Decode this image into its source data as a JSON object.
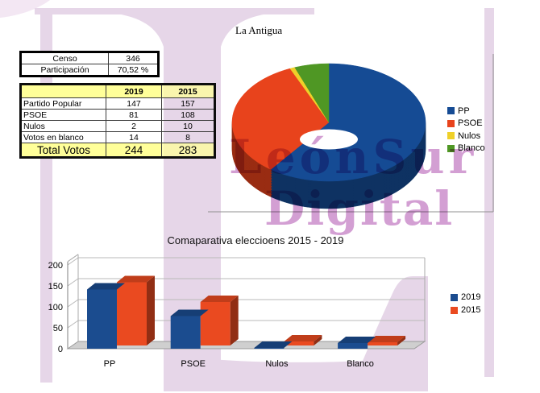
{
  "title": "La Antigua",
  "watermark": {
    "line1": "LeónSur",
    "line2": "Digital"
  },
  "summary_table": {
    "rows": [
      {
        "label": "Censo",
        "value": "346"
      },
      {
        "label": "Participación",
        "value": "70,52 %"
      }
    ]
  },
  "results_table": {
    "col_headers": [
      "",
      "2019",
      "2015"
    ],
    "rows": [
      {
        "label": "Partido Popular",
        "v2019": "147",
        "v2015": "157"
      },
      {
        "label": "PSOE",
        "v2019": "81",
        "v2015": "108"
      },
      {
        "label": "Nulos",
        "v2019": "2",
        "v2015": "10"
      },
      {
        "label": "Votos en blanco",
        "v2019": "14",
        "v2015": "8"
      }
    ],
    "total": {
      "label": "Total Votos",
      "v2019": "244",
      "v2015": "283"
    }
  },
  "chart_data": [
    {
      "type": "pie",
      "shape": "3d-donut",
      "labels": [
        "PP",
        "PSOE",
        "Nulos",
        "Blanco"
      ],
      "values": [
        147,
        81,
        2,
        14
      ],
      "colors": [
        "#154b94",
        "#e8431c",
        "#efd029",
        "#4f9724"
      ],
      "legend_position": "right"
    },
    {
      "type": "bar",
      "shape": "3d-bar",
      "title": "Comaparativa eleccioens 2015 - 2019",
      "categories": [
        "PP",
        "PSOE",
        "Nulos",
        "Blanco"
      ],
      "series": [
        {
          "name": "2019",
          "values": [
            147,
            81,
            2,
            14
          ],
          "color": "#1b4c8f"
        },
        {
          "name": "2015",
          "values": [
            157,
            108,
            10,
            8
          ],
          "color": "#ea4a20"
        }
      ],
      "ylim": [
        0,
        200
      ],
      "yticks": [
        0,
        50,
        100,
        150,
        200
      ],
      "grid": true,
      "legend_position": "right"
    }
  ],
  "colors": {
    "table_header_bg": "#ffff99",
    "watermark_lavender": "#e6d6e8",
    "watermark_magenta": "#a840a8",
    "chart_frame_gray": "#909090",
    "floor_gray": "#cfcfcf",
    "grid_gray": "#b9b9b9"
  }
}
